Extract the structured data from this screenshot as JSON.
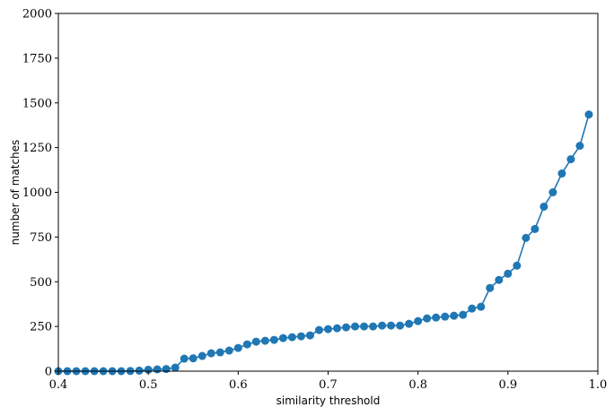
{
  "chart_data": {
    "type": "line",
    "title": "",
    "xlabel": "similarity threshold",
    "ylabel": "number of matches",
    "xlim": [
      0.4,
      1.0
    ],
    "ylim": [
      0,
      2000
    ],
    "grid": false,
    "x_ticks": [
      0.4,
      0.5,
      0.6,
      0.7,
      0.8,
      0.9,
      1.0
    ],
    "x_tick_labels": [
      "0.4",
      "0.5",
      "0.6",
      "0.7",
      "0.8",
      "0.9",
      "1.0"
    ],
    "y_ticks": [
      0,
      250,
      500,
      750,
      1000,
      1250,
      1500,
      1750,
      2000
    ],
    "y_tick_labels": [
      "0",
      "250",
      "500",
      "750",
      "1000",
      "1250",
      "1500",
      "1750",
      "2000"
    ],
    "series": [
      {
        "color": "#1f77b4",
        "marker": "circle",
        "x": [
          0.4,
          0.41,
          0.42,
          0.43,
          0.44,
          0.45,
          0.46,
          0.47,
          0.48,
          0.49,
          0.5,
          0.51,
          0.52,
          0.53,
          0.54,
          0.55,
          0.56,
          0.57,
          0.58,
          0.59,
          0.6,
          0.61,
          0.62,
          0.63,
          0.64,
          0.65,
          0.66,
          0.67,
          0.68,
          0.69,
          0.7,
          0.71,
          0.72,
          0.73,
          0.74,
          0.75,
          0.76,
          0.77,
          0.78,
          0.79,
          0.8,
          0.81,
          0.82,
          0.83,
          0.84,
          0.85,
          0.86,
          0.87,
          0.88,
          0.89,
          0.9,
          0.91,
          0.92,
          0.93,
          0.94,
          0.95,
          0.96,
          0.97,
          0.98,
          0.99
        ],
        "y": [
          0,
          0,
          0,
          0,
          0,
          0,
          0,
          0,
          1,
          3,
          8,
          10,
          12,
          20,
          70,
          72,
          85,
          100,
          105,
          115,
          130,
          150,
          165,
          170,
          175,
          185,
          190,
          195,
          200,
          230,
          235,
          240,
          245,
          250,
          250,
          250,
          255,
          255,
          255,
          265,
          280,
          295,
          300,
          305,
          310,
          315,
          350,
          360,
          465,
          510,
          545,
          590,
          745,
          795,
          920,
          1000,
          1105,
          1185,
          1260,
          1435
        ]
      }
    ]
  }
}
